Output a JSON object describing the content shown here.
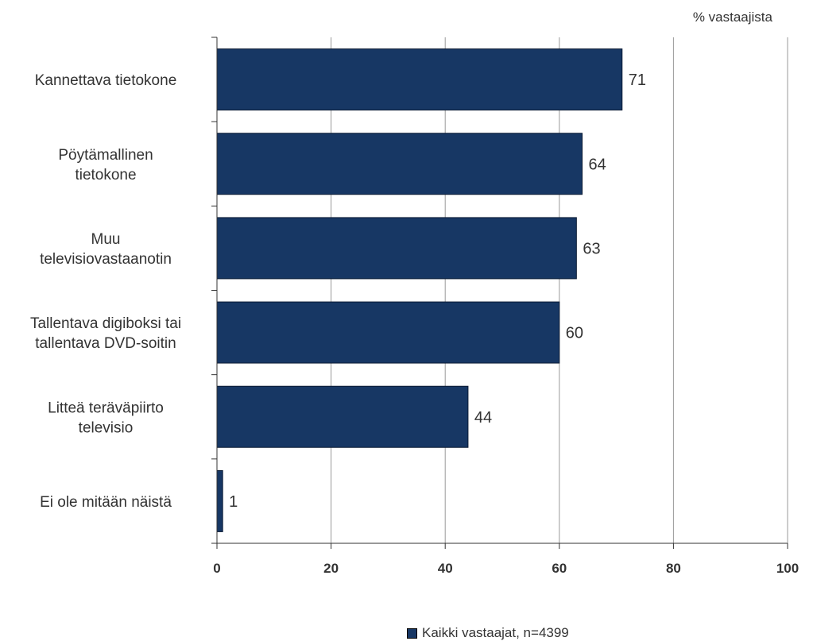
{
  "chart_data": {
    "type": "bar",
    "orientation": "horizontal",
    "unit_label": "% vastaajista",
    "categories": [
      [
        "Kannettava tietokone"
      ],
      [
        "Pöytämallinen",
        "tietokone"
      ],
      [
        "Muu",
        "televisiovastaanotin"
      ],
      [
        "Tallentava digiboksi tai",
        "tallentava DVD-soitin"
      ],
      [
        "Litteä teräväpiirto",
        "televisio"
      ],
      [
        "Ei ole mitään näistä"
      ]
    ],
    "series": [
      {
        "name": "Kaikki vastaajat, n=4399",
        "values": [
          71,
          64,
          63,
          60,
          44,
          1
        ]
      }
    ],
    "data_labels": [
      "71",
      "64",
      "63",
      "60",
      "44",
      "1"
    ],
    "xlim": [
      0,
      100
    ],
    "x_ticks": [
      "0",
      "20",
      "40",
      "60",
      "80",
      "100"
    ],
    "grid": true,
    "legend_position": "bottom",
    "colors": {
      "bar": "#173764",
      "bar_edge": "#0a1a33",
      "grid": "#999999",
      "axis": "#333333"
    }
  }
}
